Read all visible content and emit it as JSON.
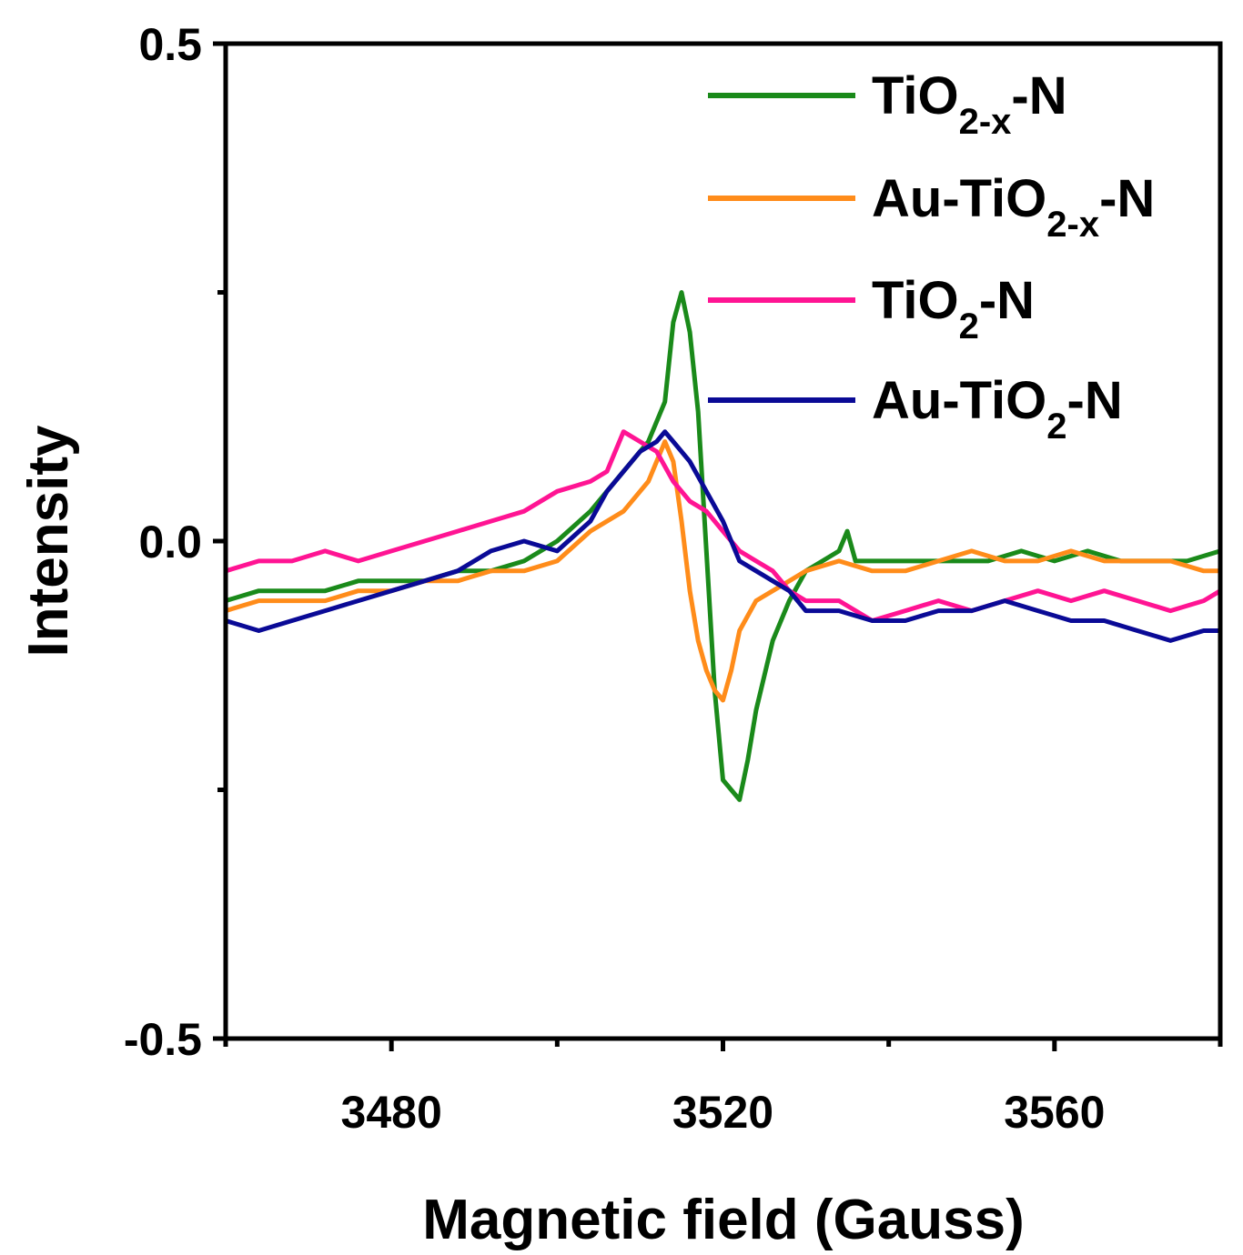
{
  "chart_data": {
    "type": "line",
    "title": "",
    "xlabel": "Magnetic field (Gauss)",
    "ylabel": "Intensity",
    "xlim": [
      3460,
      3580
    ],
    "ylim": [
      -0.5,
      0.5
    ],
    "xticks": [
      3480,
      3520,
      3560
    ],
    "xtick_labels": [
      "3480",
      "3520",
      "3560"
    ],
    "yticks": [
      -0.5,
      0.0,
      0.5
    ],
    "ytick_labels": [
      "-0.5",
      "0.0",
      "0.5"
    ],
    "grid": false,
    "legend_position": "top-right",
    "series": [
      {
        "name": "TiO2-x-N",
        "label_parts": [
          "TiO",
          "2-x",
          "-N"
        ],
        "color": "#1a8a1a",
        "x": [
          3460,
          3464,
          3468,
          3472,
          3476,
          3480,
          3484,
          3488,
          3492,
          3496,
          3500,
          3504,
          3508,
          3511,
          3513,
          3514,
          3515,
          3516,
          3517,
          3518,
          3519,
          3520,
          3521,
          3522,
          3523,
          3524,
          3526,
          3528,
          3530,
          3532,
          3534,
          3535,
          3536,
          3540,
          3544,
          3548,
          3552,
          3556,
          3560,
          3564,
          3568,
          3572,
          3576,
          3580
        ],
        "y": [
          -0.06,
          -0.05,
          -0.05,
          -0.05,
          -0.04,
          -0.04,
          -0.04,
          -0.03,
          -0.03,
          -0.02,
          0.0,
          0.03,
          0.07,
          0.1,
          0.14,
          0.22,
          0.25,
          0.21,
          0.13,
          -0.01,
          -0.15,
          -0.24,
          -0.25,
          -0.26,
          -0.22,
          -0.17,
          -0.1,
          -0.06,
          -0.03,
          -0.02,
          -0.01,
          0.01,
          -0.02,
          -0.02,
          -0.02,
          -0.02,
          -0.02,
          -0.01,
          -0.02,
          -0.01,
          -0.02,
          -0.02,
          -0.02,
          -0.01
        ]
      },
      {
        "name": "Au-TiO2-x-N",
        "label_parts": [
          "Au-TiO",
          "2-x",
          "-N"
        ],
        "color": "#ff8c1a",
        "x": [
          3460,
          3464,
          3468,
          3472,
          3476,
          3480,
          3484,
          3488,
          3492,
          3496,
          3500,
          3504,
          3508,
          3511,
          3513,
          3514,
          3515,
          3516,
          3517,
          3518,
          3519,
          3520,
          3521,
          3522,
          3524,
          3526,
          3528,
          3530,
          3534,
          3538,
          3542,
          3546,
          3550,
          3554,
          3558,
          3562,
          3566,
          3570,
          3574,
          3578,
          3580
        ],
        "y": [
          -0.07,
          -0.06,
          -0.06,
          -0.06,
          -0.05,
          -0.05,
          -0.04,
          -0.04,
          -0.03,
          -0.03,
          -0.02,
          0.01,
          0.03,
          0.06,
          0.1,
          0.08,
          0.02,
          -0.05,
          -0.1,
          -0.13,
          -0.15,
          -0.16,
          -0.13,
          -0.09,
          -0.06,
          -0.05,
          -0.04,
          -0.03,
          -0.02,
          -0.03,
          -0.03,
          -0.02,
          -0.01,
          -0.02,
          -0.02,
          -0.01,
          -0.02,
          -0.02,
          -0.02,
          -0.03,
          -0.03
        ]
      },
      {
        "name": "TiO2-N",
        "label_parts": [
          "TiO",
          "2",
          "-N"
        ],
        "color": "#ff1493",
        "x": [
          3460,
          3464,
          3468,
          3472,
          3476,
          3480,
          3484,
          3488,
          3492,
          3496,
          3500,
          3504,
          3506,
          3508,
          3510,
          3512,
          3514,
          3516,
          3518,
          3520,
          3522,
          3524,
          3526,
          3528,
          3530,
          3534,
          3538,
          3542,
          3546,
          3550,
          3554,
          3558,
          3562,
          3566,
          3570,
          3574,
          3578,
          3580
        ],
        "y": [
          -0.03,
          -0.02,
          -0.02,
          -0.01,
          -0.02,
          -0.01,
          0.0,
          0.01,
          0.02,
          0.03,
          0.05,
          0.06,
          0.07,
          0.11,
          0.1,
          0.09,
          0.06,
          0.04,
          0.03,
          0.01,
          -0.01,
          -0.02,
          -0.03,
          -0.05,
          -0.06,
          -0.06,
          -0.08,
          -0.07,
          -0.06,
          -0.07,
          -0.06,
          -0.05,
          -0.06,
          -0.05,
          -0.06,
          -0.07,
          -0.06,
          -0.05
        ]
      },
      {
        "name": "Au-TiO2-N",
        "label_parts": [
          "Au-TiO",
          "2",
          "-N"
        ],
        "color": "#0a0a96",
        "x": [
          3460,
          3464,
          3468,
          3472,
          3476,
          3480,
          3484,
          3488,
          3492,
          3496,
          3500,
          3504,
          3506,
          3508,
          3510,
          3512,
          3513,
          3514,
          3516,
          3518,
          3520,
          3522,
          3524,
          3526,
          3528,
          3530,
          3534,
          3538,
          3542,
          3546,
          3550,
          3554,
          3558,
          3562,
          3566,
          3570,
          3574,
          3578,
          3580
        ],
        "y": [
          -0.08,
          -0.09,
          -0.08,
          -0.07,
          -0.06,
          -0.05,
          -0.04,
          -0.03,
          -0.01,
          0.0,
          -0.01,
          0.02,
          0.05,
          0.07,
          0.09,
          0.1,
          0.11,
          0.1,
          0.08,
          0.05,
          0.02,
          -0.02,
          -0.03,
          -0.04,
          -0.05,
          -0.07,
          -0.07,
          -0.08,
          -0.08,
          -0.07,
          -0.07,
          -0.06,
          -0.07,
          -0.08,
          -0.08,
          -0.09,
          -0.1,
          -0.09,
          -0.09
        ]
      }
    ]
  }
}
